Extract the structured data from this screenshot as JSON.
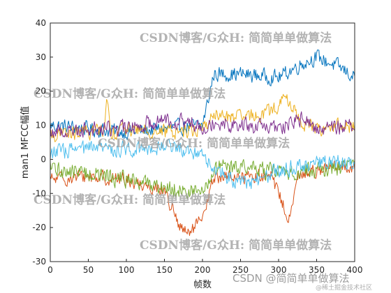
{
  "chart_data": {
    "type": "line",
    "xlabel": "帧数",
    "ylabel": "man1 MFCC幅值",
    "xlim": [
      0,
      400
    ],
    "ylim": [
      -30,
      40
    ],
    "xticks": [
      0,
      50,
      100,
      150,
      200,
      250,
      300,
      350,
      400
    ],
    "yticks": [
      -30,
      -20,
      -10,
      0,
      10,
      20,
      30,
      40
    ],
    "grid": false,
    "n_points": 401,
    "series": [
      {
        "color": "#0072BD",
        "x": [
          0,
          50,
          100,
          150,
          200,
          215,
          250,
          300,
          330,
          350,
          380,
          400
        ],
        "values": [
          10,
          9,
          8,
          9,
          10,
          25,
          25,
          24,
          28,
          30,
          27,
          24
        ],
        "noise": 3.0
      },
      {
        "color": "#D95319",
        "x": [
          0,
          50,
          100,
          150,
          170,
          180,
          200,
          215,
          250,
          290,
          300,
          315,
          325,
          350,
          400
        ],
        "values": [
          -6,
          -5,
          -6,
          -9,
          -20,
          -22,
          -18,
          -5,
          -5,
          -5,
          -10,
          -18,
          -5,
          -3,
          -2
        ],
        "noise": 2.8
      },
      {
        "color": "#EDB120",
        "x": [
          0,
          50,
          70,
          75,
          80,
          100,
          150,
          200,
          215,
          250,
          290,
          310,
          330,
          350,
          400
        ],
        "values": [
          7,
          8,
          9,
          18,
          8,
          9,
          8,
          9,
          13,
          12,
          14,
          18,
          11,
          9,
          10
        ],
        "noise": 3.0
      },
      {
        "color": "#7E2F8E",
        "x": [
          0,
          50,
          100,
          150,
          200,
          215,
          250,
          300,
          330,
          350,
          400
        ],
        "values": [
          8,
          9,
          9,
          12,
          10,
          11,
          10,
          9,
          12,
          9,
          10
        ],
        "noise": 3.2
      },
      {
        "color": "#77AC30",
        "x": [
          0,
          50,
          100,
          150,
          200,
          215,
          250,
          300,
          350,
          400
        ],
        "values": [
          -3,
          -4,
          -6,
          -8,
          -10,
          -3,
          -2,
          -4,
          -3,
          -2
        ],
        "noise": 3.5
      },
      {
        "color": "#4DBEEE",
        "x": [
          0,
          50,
          100,
          150,
          200,
          215,
          250,
          280,
          300,
          350,
          400
        ],
        "values": [
          2,
          3,
          3,
          4,
          2,
          -3,
          -7,
          -6,
          -3,
          -1,
          -1
        ],
        "noise": 3.2
      }
    ]
  },
  "watermarks": {
    "top": "CSDN博客/G众H: 简简单单做算法",
    "mid_left": "CSDN博客/G众H: 简简单单做算法",
    "center": "CSDN博客/G众H: 简简单单做算法",
    "low_left": "CSDN博客/G众H: 简简单单做算法",
    "bottom": "CSDN博客/G众H: 简简单单做算法",
    "brand": "CSDN @简简单单做算法",
    "brand_small": "@稀土掘金技术社区"
  }
}
